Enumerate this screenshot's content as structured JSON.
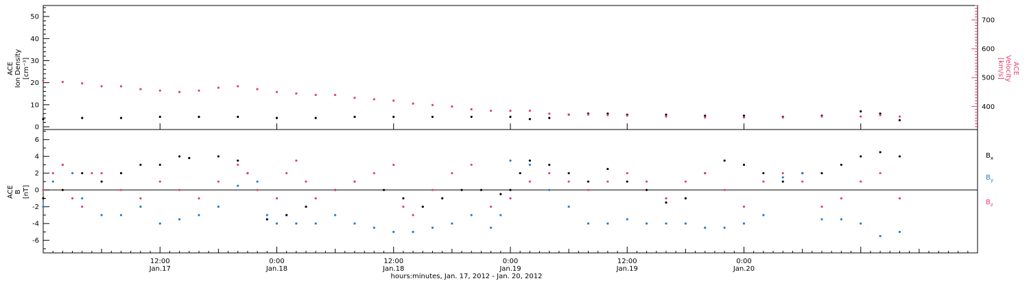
{
  "colors": {
    "black": "#000000",
    "blue": "#1a7fd6",
    "pink": "#e0406a"
  },
  "chart_data": [
    {
      "type": "scatter",
      "panel": "plasma",
      "ylabel_left": [
        "ACE",
        "Ion Density",
        "[cm⁻³]"
      ],
      "ylabel_right": [
        "ACE",
        "Velocity",
        "[km/s]"
      ],
      "ylim_left": [
        0,
        55
      ],
      "ylim_right": [
        320,
        750
      ],
      "yticks_left": [
        "0",
        "10",
        "20",
        "30",
        "40",
        "50"
      ],
      "yticks_right": [
        "400",
        "500",
        "600",
        "700"
      ],
      "xlim_hours": [
        0,
        96
      ],
      "series": [
        {
          "axis": "left",
          "color": "#000000",
          "x": [
            0,
            4,
            8,
            12,
            16,
            20,
            24,
            28,
            32,
            36,
            40,
            44,
            48,
            50,
            52,
            54,
            56,
            58,
            60,
            64,
            68,
            72,
            76,
            80,
            84,
            86,
            88
          ],
          "y": [
            3.5,
            4,
            4,
            4.5,
            4.5,
            4.5,
            4,
            4,
            4.5,
            4.5,
            4.5,
            4.5,
            4.5,
            3.5,
            4,
            5.5,
            6,
            6,
            5.5,
            5.5,
            5,
            5,
            4.5,
            5,
            7,
            6,
            3
          ]
        },
        {
          "axis": "right",
          "color": "#e0406a",
          "x": [
            0,
            2,
            4,
            6,
            8,
            10,
            12,
            14,
            16,
            18,
            20,
            22,
            24,
            26,
            28,
            30,
            32,
            34,
            36,
            38,
            40,
            42,
            44,
            46,
            48,
            50,
            52,
            54,
            56,
            58,
            60,
            64,
            68,
            72,
            76,
            80,
            84,
            86,
            88
          ],
          "y": [
            490,
            485,
            480,
            470,
            470,
            460,
            455,
            450,
            455,
            465,
            470,
            460,
            450,
            445,
            440,
            440,
            430,
            425,
            420,
            410,
            405,
            400,
            390,
            385,
            385,
            385,
            375,
            372,
            372,
            370,
            368,
            365,
            362,
            362,
            362,
            365,
            365,
            370,
            365
          ]
        }
      ]
    },
    {
      "type": "scatter",
      "panel": "magnetic",
      "ylabel_left": [
        "ACE",
        "B",
        "[nT]"
      ],
      "ylim": [
        -7.5,
        7.2
      ],
      "yticks": [
        "-6",
        "-4",
        "-2",
        "0",
        "2",
        "4",
        "6"
      ],
      "xlim_hours": [
        0,
        96
      ],
      "xticks": [
        {
          "hour": 12,
          "time": "12:00",
          "day": "Jan.17"
        },
        {
          "hour": 24,
          "time": "0:00",
          "day": "Jan.18"
        },
        {
          "hour": 36,
          "time": "12:00",
          "day": "Jan.18"
        },
        {
          "hour": 48,
          "time": "0:00",
          "day": "Jan.19"
        },
        {
          "hour": 60,
          "time": "12:00",
          "day": "Jan.19"
        },
        {
          "hour": 72,
          "time": "0:00",
          "day": "Jan.20"
        }
      ],
      "xlabel": "hours:minutes, Jan. 17, 2012 - Jan. 20, 2012",
      "legend": [
        {
          "letter": "B",
          "sub": "x",
          "color": "#000000"
        },
        {
          "letter": "B",
          "sub": "y",
          "color": "#1a7fd6"
        },
        {
          "letter": "B",
          "sub": "z",
          "color": "#e0406a"
        }
      ],
      "series": [
        {
          "color": "#000000",
          "x": [
            0,
            2,
            4,
            6,
            8,
            10,
            12,
            14,
            15,
            18,
            20,
            21,
            23,
            25,
            27,
            30,
            32,
            35,
            37,
            39,
            41,
            43,
            45,
            47,
            48,
            49,
            50,
            52,
            54,
            56,
            58,
            60,
            62,
            64,
            66,
            68,
            70,
            72,
            74,
            76,
            78,
            80,
            82,
            84,
            86,
            88
          ],
          "y": [
            -1,
            0,
            2,
            1,
            2,
            3,
            3,
            4,
            3.8,
            4,
            3.5,
            2,
            -3.5,
            -3,
            -2,
            0,
            1,
            0,
            -1,
            -2,
            -1,
            0,
            0,
            -0.5,
            0,
            2,
            3.5,
            3,
            2,
            1,
            2.5,
            1,
            0,
            -1.5,
            -1,
            2,
            3.5,
            3,
            2,
            1,
            2,
            2,
            3,
            4,
            4.5,
            4
          ]
        },
        {
          "color": "#1a7fd6",
          "x": [
            0,
            1,
            2,
            3,
            4,
            6,
            8,
            10,
            12,
            14,
            16,
            18,
            20,
            22,
            23,
            24,
            26,
            28,
            30,
            32,
            34,
            36,
            38,
            40,
            42,
            44,
            46,
            47,
            48,
            50,
            52,
            54,
            56,
            58,
            60,
            62,
            64,
            66,
            68,
            70,
            72,
            74,
            76,
            78,
            80,
            82,
            84,
            86,
            88
          ],
          "y": [
            -2,
            1,
            3,
            2,
            -1,
            -3,
            -3,
            -2,
            -4,
            -3.5,
            -3,
            -2,
            0.5,
            1,
            -3,
            -4,
            -4,
            -4,
            -3,
            -4,
            -4.5,
            -5,
            -5,
            -4.5,
            -4,
            -3,
            -4.5,
            -3,
            3.5,
            3,
            0,
            -2,
            -4,
            -4,
            -3.5,
            -4,
            -4,
            -4,
            -4.5,
            -4.5,
            -4,
            -3,
            1.5,
            2,
            -3.5,
            -3.5,
            -4,
            -5.5,
            -5
          ]
        },
        {
          "color": "#e0406a",
          "x": [
            0,
            1,
            2,
            3,
            4,
            5,
            6,
            8,
            10,
            12,
            14,
            16,
            18,
            20,
            21,
            22,
            24,
            25,
            26,
            27,
            28,
            30,
            32,
            34,
            36,
            37,
            38,
            40,
            42,
            44,
            46,
            48,
            50,
            52,
            54,
            56,
            58,
            60,
            62,
            64,
            66,
            68,
            70,
            72,
            74,
            76,
            78,
            80,
            82,
            84,
            86,
            88
          ],
          "y": [
            0,
            2,
            3,
            -1,
            -2,
            2,
            2,
            0,
            -1,
            1,
            0,
            -1,
            1,
            3,
            2,
            0,
            -1,
            2,
            3.5,
            1,
            -1,
            0,
            1,
            2,
            3,
            -2,
            -3,
            0,
            2,
            3,
            -2,
            -1,
            1,
            2,
            1,
            0,
            1,
            2,
            1,
            -1,
            1,
            2,
            0,
            -2,
            1,
            2,
            1,
            -2,
            -1,
            1,
            2,
            -1
          ]
        }
      ]
    }
  ]
}
